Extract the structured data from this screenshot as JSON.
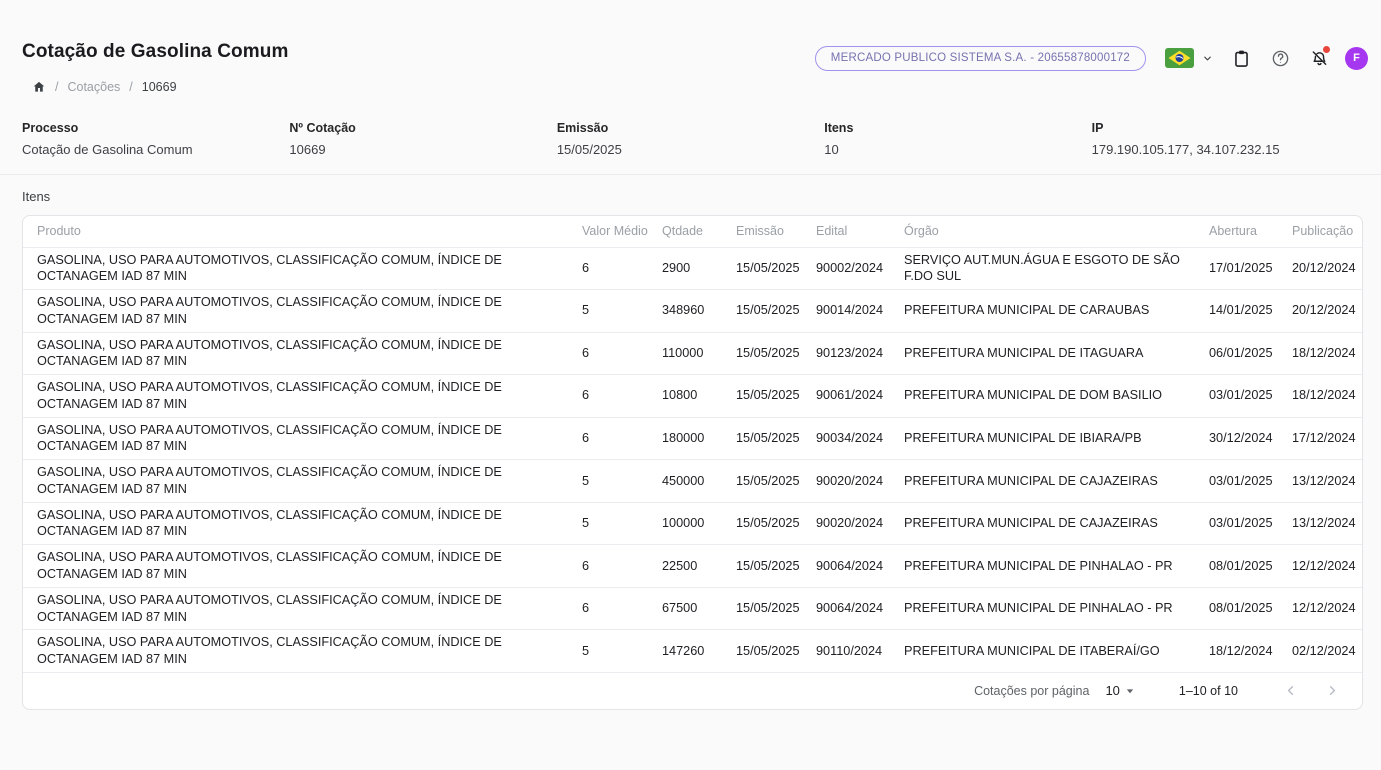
{
  "topbar": {
    "company_badge": "MERCADO PUBLICO SISTEMA S.A. - 20655878000172",
    "avatar_initial": "F",
    "icons": {
      "flag": "brazil-flag",
      "language_chevron": "chevron-down",
      "clipboard": "clipboard-icon",
      "help": "help-icon",
      "notifications": "notifications-off-icon"
    }
  },
  "header": {
    "title": "Cotação de Gasolina Comum"
  },
  "breadcrumb": {
    "separator": "/",
    "items": [
      "Cotações",
      "10669"
    ]
  },
  "info": {
    "fields": [
      {
        "label": "Processo",
        "value": "Cotação de Gasolina Comum"
      },
      {
        "label": "Nº Cotação",
        "value": "10669"
      },
      {
        "label": "Emissão",
        "value": "15/05/2025"
      },
      {
        "label": "Itens",
        "value": "10"
      },
      {
        "label": "IP",
        "value": "179.190.105.177, 34.107.232.15"
      }
    ]
  },
  "table": {
    "section_title": "Itens",
    "columns": [
      {
        "key": "produto",
        "label": "Produto"
      },
      {
        "key": "valor_medio",
        "label": "Valor Médio"
      },
      {
        "key": "qtdade",
        "label": "Qtdade"
      },
      {
        "key": "emissao",
        "label": "Emissão"
      },
      {
        "key": "edital",
        "label": "Edital"
      },
      {
        "key": "orgao",
        "label": "Órgão"
      },
      {
        "key": "abertura",
        "label": "Abertura"
      },
      {
        "key": "publicacao",
        "label": "Publicação"
      }
    ],
    "rows": [
      {
        "produto": "GASOLINA, USO PARA AUTOMOTIVOS, CLASSIFICAÇÃO COMUM, ÍNDICE DE OCTANAGEM IAD 87 MIN",
        "valor_medio": "6",
        "qtdade": "2900",
        "emissao": "15/05/2025",
        "edital": "90002/2024",
        "orgao": "SERVIÇO AUT.MUN.ÁGUA E ESGOTO DE SÃO F.DO SUL",
        "abertura": "17/01/2025",
        "publicacao": "20/12/2024"
      },
      {
        "produto": "GASOLINA, USO PARA AUTOMOTIVOS, CLASSIFICAÇÃO COMUM, ÍNDICE DE OCTANAGEM IAD 87 MIN",
        "valor_medio": "5",
        "qtdade": "348960",
        "emissao": "15/05/2025",
        "edital": "90014/2024",
        "orgao": "PREFEITURA MUNICIPAL DE CARAUBAS",
        "abertura": "14/01/2025",
        "publicacao": "20/12/2024"
      },
      {
        "produto": "GASOLINA, USO PARA AUTOMOTIVOS, CLASSIFICAÇÃO COMUM, ÍNDICE DE OCTANAGEM IAD 87 MIN",
        "valor_medio": "6",
        "qtdade": "110000",
        "emissao": "15/05/2025",
        "edital": "90123/2024",
        "orgao": "PREFEITURA MUNICIPAL DE ITAGUARA",
        "abertura": "06/01/2025",
        "publicacao": "18/12/2024"
      },
      {
        "produto": "GASOLINA, USO PARA AUTOMOTIVOS, CLASSIFICAÇÃO COMUM, ÍNDICE DE OCTANAGEM IAD 87 MIN",
        "valor_medio": "6",
        "qtdade": "10800",
        "emissao": "15/05/2025",
        "edital": "90061/2024",
        "orgao": "PREFEITURA MUNICIPAL DE DOM BASILIO",
        "abertura": "03/01/2025",
        "publicacao": "18/12/2024"
      },
      {
        "produto": "GASOLINA, USO PARA AUTOMOTIVOS, CLASSIFICAÇÃO COMUM, ÍNDICE DE OCTANAGEM IAD 87 MIN",
        "valor_medio": "6",
        "qtdade": "180000",
        "emissao": "15/05/2025",
        "edital": "90034/2024",
        "orgao": "PREFEITURA MUNICIPAL DE IBIARA/PB",
        "abertura": "30/12/2024",
        "publicacao": "17/12/2024"
      },
      {
        "produto": "GASOLINA, USO PARA AUTOMOTIVOS, CLASSIFICAÇÃO COMUM, ÍNDICE DE OCTANAGEM IAD 87 MIN",
        "valor_medio": "5",
        "qtdade": "450000",
        "emissao": "15/05/2025",
        "edital": "90020/2024",
        "orgao": "PREFEITURA MUNICIPAL DE CAJAZEIRAS",
        "abertura": "03/01/2025",
        "publicacao": "13/12/2024"
      },
      {
        "produto": "GASOLINA, USO PARA AUTOMOTIVOS, CLASSIFICAÇÃO COMUM, ÍNDICE DE OCTANAGEM IAD 87 MIN",
        "valor_medio": "5",
        "qtdade": "100000",
        "emissao": "15/05/2025",
        "edital": "90020/2024",
        "orgao": "PREFEITURA MUNICIPAL DE CAJAZEIRAS",
        "abertura": "03/01/2025",
        "publicacao": "13/12/2024"
      },
      {
        "produto": "GASOLINA, USO PARA AUTOMOTIVOS, CLASSIFICAÇÃO COMUM, ÍNDICE DE OCTANAGEM IAD 87 MIN",
        "valor_medio": "6",
        "qtdade": "22500",
        "emissao": "15/05/2025",
        "edital": "90064/2024",
        "orgao": "PREFEITURA MUNICIPAL DE PINHALAO - PR",
        "abertura": "08/01/2025",
        "publicacao": "12/12/2024"
      },
      {
        "produto": "GASOLINA, USO PARA AUTOMOTIVOS, CLASSIFICAÇÃO COMUM, ÍNDICE DE OCTANAGEM IAD 87 MIN",
        "valor_medio": "6",
        "qtdade": "67500",
        "emissao": "15/05/2025",
        "edital": "90064/2024",
        "orgao": "PREFEITURA MUNICIPAL DE PINHALAO - PR",
        "abertura": "08/01/2025",
        "publicacao": "12/12/2024"
      },
      {
        "produto": "GASOLINA, USO PARA AUTOMOTIVOS, CLASSIFICAÇÃO COMUM, ÍNDICE DE OCTANAGEM IAD 87 MIN",
        "valor_medio": "5",
        "qtdade": "147260",
        "emissao": "15/05/2025",
        "edital": "90110/2024",
        "orgao": "PREFEITURA MUNICIPAL DE ITABERAÍ/GO",
        "abertura": "18/12/2024",
        "publicacao": "02/12/2024"
      }
    ]
  },
  "pagination": {
    "per_page_label": "Cotações por página",
    "per_page": "10",
    "range": "1–10 of 10"
  },
  "colors": {
    "accent_purple": "#a637f0",
    "badge_border": "#a094ee",
    "badge_text": "#7672b0",
    "notification_dot": "#e8453c",
    "flag_green": "#4a9f3f",
    "flag_yellow": "#ffdf29",
    "flag_blue": "#21409a",
    "page_background": "#fafafa",
    "header_text_gray": "#9aa0a6"
  }
}
